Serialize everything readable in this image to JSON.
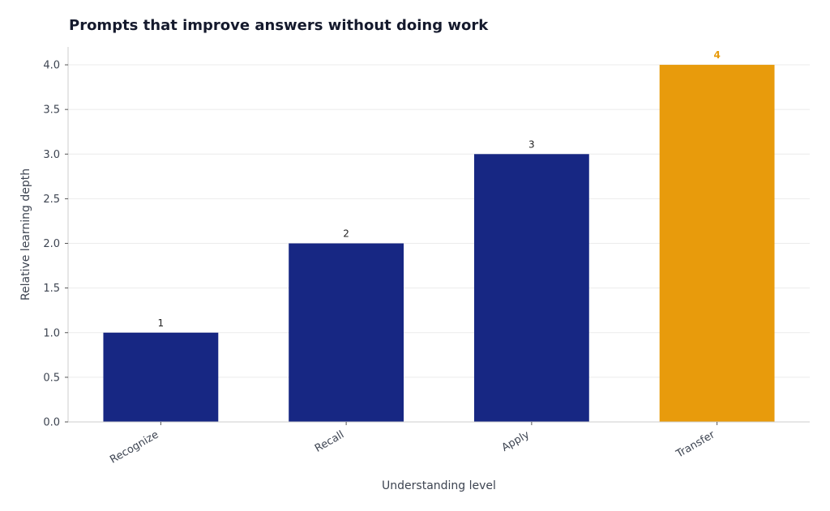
{
  "chart_data": {
    "type": "bar",
    "title": "Prompts that improve answers without doing work",
    "xlabel": "Understanding level",
    "ylabel": "Relative learning depth",
    "categories": [
      "Recognize",
      "Recall",
      "Apply",
      "Transfer"
    ],
    "values": [
      1,
      2,
      3,
      4
    ],
    "data_labels": [
      "1",
      "2",
      "3",
      "4"
    ],
    "ylim": [
      0,
      4.2
    ],
    "yticks": [
      "0.0",
      "0.5",
      "1.0",
      "1.5",
      "2.0",
      "2.5",
      "3.0",
      "3.5",
      "4.0"
    ],
    "grid": "horizontal",
    "colors": {
      "default_bar": "#172783",
      "highlight_bar": "#e89b0c",
      "highlight_label": "#e89b0c",
      "label": "#222222",
      "grid": "#ebebeb",
      "axis": "#cccccc"
    },
    "highlight_index": 3
  }
}
